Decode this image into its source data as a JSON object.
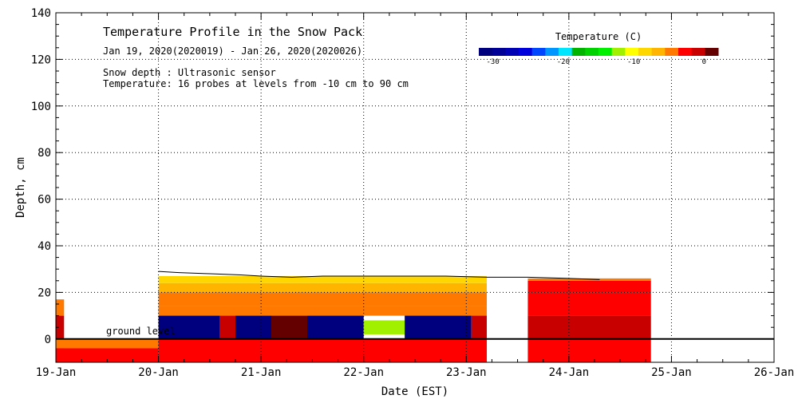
{
  "chart_data": {
    "type": "heatmap",
    "title": "Temperature Profile in the Snow Pack",
    "subtitle": "Jan 19, 2020(2020019) - Jan 26, 2020(2020026)",
    "notes": [
      "Snow depth : Ultrasonic sensor",
      "Temperature: 16 probes at levels from -10 cm to 90 cm"
    ],
    "ground_label": "ground level",
    "xlabel": "Date (EST)",
    "ylabel": "Depth, cm",
    "x_ticks": [
      "19-Jan",
      "20-Jan",
      "21-Jan",
      "22-Jan",
      "23-Jan",
      "24-Jan",
      "25-Jan",
      "26-Jan"
    ],
    "xlim": [
      0,
      7
    ],
    "ylim": [
      -10,
      140
    ],
    "y_ticks": [
      0,
      20,
      40,
      60,
      80,
      100,
      120,
      140
    ],
    "colorbar": {
      "label": "Temperature (C)",
      "range": [
        -32,
        2
      ],
      "tick_values": [
        -30,
        -20,
        -10,
        0
      ],
      "tick_labels": [
        "-30",
        "-20",
        "-10",
        "0"
      ],
      "colors": [
        "#00007f",
        "#000096",
        "#0000b4",
        "#0000dc",
        "#0046ff",
        "#0096ff",
        "#00e6ff",
        "#00b400",
        "#00d200",
        "#00f000",
        "#a0f000",
        "#ffff00",
        "#ffd700",
        "#ffb400",
        "#ff7800",
        "#ff0000",
        "#c80000",
        "#640000"
      ]
    },
    "snow_depth": {
      "x": [
        1.0,
        1.2,
        1.5,
        1.8,
        2.0,
        2.3,
        2.6,
        3.0,
        3.4,
        3.8,
        4.2,
        4.6,
        5.0,
        5.3
      ],
      "y": [
        29,
        28.5,
        28,
        27.5,
        27,
        26.5,
        27,
        27,
        27,
        27,
        26.5,
        26.5,
        26,
        25.5
      ]
    },
    "temperature_blocks": [
      {
        "x0": 0.0,
        "x1": 0.08,
        "y0": -10,
        "y1": 0,
        "temp": -3
      },
      {
        "x0": 0.0,
        "x1": 0.08,
        "y0": 0,
        "y1": 10,
        "temp": 0
      },
      {
        "x0": 0.0,
        "x1": 0.08,
        "y0": 10,
        "y1": 17,
        "temp": -5
      },
      {
        "x0": 0.0,
        "x1": 1.0,
        "y0": -4,
        "y1": 0,
        "temp": -4
      },
      {
        "x0": 0.0,
        "x1": 1.0,
        "y0": -10,
        "y1": -4,
        "temp": -2
      },
      {
        "x0": 1.0,
        "x1": 4.2,
        "y0": -10,
        "y1": 0,
        "temp": -2
      },
      {
        "x0": 1.0,
        "x1": 4.2,
        "y0": 10,
        "y1": 14,
        "temp": -4
      },
      {
        "x0": 1.0,
        "x1": 4.2,
        "y0": 14,
        "y1": 20,
        "temp": -5
      },
      {
        "x0": 1.0,
        "x1": 4.2,
        "y0": 20,
        "y1": 24,
        "temp": -6
      },
      {
        "x0": 1.0,
        "x1": 4.2,
        "y0": 24,
        "y1": 27,
        "temp": -8
      },
      {
        "x0": 1.0,
        "x1": 1.6,
        "y0": 0,
        "y1": 10,
        "temp": -31
      },
      {
        "x0": 1.6,
        "x1": 1.75,
        "y0": 0,
        "y1": 10,
        "temp": -1
      },
      {
        "x0": 1.75,
        "x1": 2.1,
        "y0": 0,
        "y1": 10,
        "temp": -31
      },
      {
        "x0": 2.1,
        "x1": 2.45,
        "y0": 0,
        "y1": 10,
        "temp": 1
      },
      {
        "x0": 2.45,
        "x1": 3.0,
        "y0": 0,
        "y1": 10,
        "temp": -31
      },
      {
        "x0": 3.0,
        "x1": 3.4,
        "y0": 2,
        "y1": 8,
        "temp": -12
      },
      {
        "x0": 3.4,
        "x1": 4.05,
        "y0": 0,
        "y1": 10,
        "temp": -31
      },
      {
        "x0": 4.05,
        "x1": 4.2,
        "y0": 0,
        "y1": 10,
        "temp": -1
      },
      {
        "x0": 4.6,
        "x1": 5.8,
        "y0": -10,
        "y1": 0,
        "temp": -2
      },
      {
        "x0": 4.6,
        "x1": 5.8,
        "y0": 0,
        "y1": 10,
        "temp": -1
      },
      {
        "x0": 4.6,
        "x1": 5.8,
        "y0": 10,
        "y1": 20,
        "temp": -2
      },
      {
        "x0": 4.6,
        "x1": 5.8,
        "y0": 20,
        "y1": 25,
        "temp": -3
      },
      {
        "x0": 4.6,
        "x1": 5.8,
        "y0": 25,
        "y1": 26,
        "temp": -4
      }
    ]
  }
}
